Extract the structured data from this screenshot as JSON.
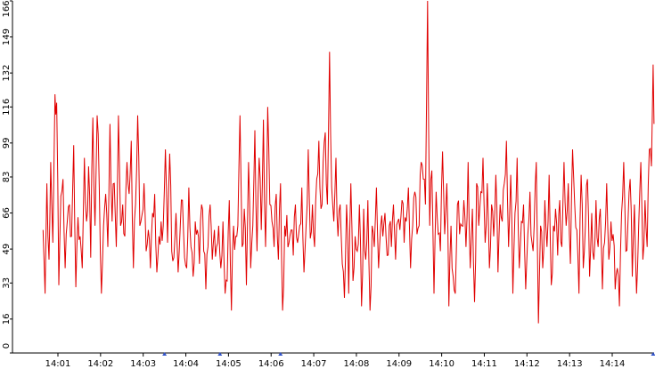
{
  "chart_data": {
    "type": "line",
    "title": "",
    "xlabel": "",
    "ylabel": "",
    "ylim": [
      0,
      166
    ],
    "y_ticks": [
      "0",
      "16",
      "33",
      "49",
      "66",
      "83",
      "99",
      "116",
      "132",
      "149",
      "166"
    ],
    "x_ticks": [
      "14:01",
      "14:02",
      "14:03",
      "14:04",
      "14:05",
      "14:06",
      "14:07",
      "14:08",
      "14:09",
      "14:10",
      "14:11",
      "14:12",
      "14:13",
      "14:14"
    ],
    "x_minutes": [
      1,
      2,
      3,
      4,
      5,
      6,
      7,
      8,
      9,
      10,
      11,
      12,
      13,
      14
    ],
    "x_start_minute": 0.65,
    "x_end_minute": 14.98,
    "markers_minutes": [
      3.5,
      4.8,
      6.22,
      14.96
    ],
    "grid": true,
    "line_color": "#e00000",
    "marker_color": "#3355cc",
    "series_anchors": [
      [
        0.65,
        58
      ],
      [
        0.7,
        28
      ],
      [
        0.74,
        80
      ],
      [
        0.79,
        44
      ],
      [
        0.83,
        90
      ],
      [
        0.88,
        52
      ],
      [
        0.93,
        122
      ],
      [
        0.97,
        118
      ],
      [
        1.02,
        32
      ],
      [
        1.07,
        74
      ],
      [
        1.12,
        82
      ],
      [
        1.17,
        40
      ],
      [
        1.22,
        62
      ],
      [
        1.27,
        70
      ],
      [
        1.32,
        55
      ],
      [
        1.37,
        98
      ],
      [
        1.42,
        31
      ],
      [
        1.47,
        64
      ],
      [
        1.52,
        55
      ],
      [
        1.57,
        40
      ],
      [
        1.62,
        92
      ],
      [
        1.67,
        62
      ],
      [
        1.72,
        88
      ],
      [
        1.77,
        45
      ],
      [
        1.82,
        111
      ],
      [
        1.87,
        60
      ],
      [
        1.92,
        112
      ],
      [
        1.97,
        78
      ],
      [
        2.02,
        28
      ],
      [
        2.07,
        60
      ],
      [
        2.12,
        75
      ],
      [
        2.17,
        50
      ],
      [
        2.22,
        108
      ],
      [
        2.27,
        62
      ],
      [
        2.32,
        80
      ],
      [
        2.37,
        50
      ],
      [
        2.42,
        112
      ],
      [
        2.47,
        60
      ],
      [
        2.52,
        70
      ],
      [
        2.57,
        55
      ],
      [
        2.62,
        90
      ],
      [
        2.67,
        75
      ],
      [
        2.72,
        100
      ],
      [
        2.77,
        40
      ],
      [
        2.82,
        70
      ],
      [
        2.87,
        112
      ],
      [
        2.92,
        60
      ],
      [
        2.97,
        65
      ],
      [
        3.02,
        80
      ],
      [
        3.07,
        48
      ],
      [
        3.12,
        58
      ],
      [
        3.17,
        40
      ],
      [
        3.22,
        66
      ],
      [
        3.27,
        75
      ],
      [
        3.32,
        38
      ],
      [
        3.37,
        55
      ],
      [
        3.42,
        62
      ],
      [
        3.47,
        60
      ],
      [
        3.52,
        96
      ],
      [
        3.57,
        52
      ],
      [
        3.62,
        94
      ],
      [
        3.67,
        48
      ],
      [
        3.72,
        45
      ],
      [
        3.77,
        66
      ],
      [
        3.82,
        38
      ],
      [
        3.87,
        60
      ],
      [
        3.92,
        72
      ],
      [
        3.97,
        45
      ],
      [
        4.02,
        40
      ],
      [
        4.07,
        78
      ],
      [
        4.12,
        50
      ],
      [
        4.17,
        36
      ],
      [
        4.22,
        62
      ],
      [
        4.27,
        58
      ],
      [
        4.32,
        42
      ],
      [
        4.37,
        70
      ],
      [
        4.42,
        48
      ],
      [
        4.47,
        30
      ],
      [
        4.52,
        50
      ],
      [
        4.57,
        70
      ],
      [
        4.62,
        44
      ],
      [
        4.67,
        58
      ],
      [
        4.72,
        50
      ],
      [
        4.77,
        60
      ],
      [
        4.82,
        40
      ],
      [
        4.87,
        62
      ],
      [
        4.92,
        28
      ],
      [
        4.97,
        34
      ],
      [
        5.02,
        72
      ],
      [
        5.07,
        20
      ],
      [
        5.12,
        60
      ],
      [
        5.17,
        55
      ],
      [
        5.22,
        60
      ],
      [
        5.27,
        112
      ],
      [
        5.32,
        50
      ],
      [
        5.37,
        68
      ],
      [
        5.42,
        32
      ],
      [
        5.47,
        90
      ],
      [
        5.52,
        40
      ],
      [
        5.57,
        60
      ],
      [
        5.62,
        105
      ],
      [
        5.67,
        48
      ],
      [
        5.72,
        92
      ],
      [
        5.77,
        58
      ],
      [
        5.82,
        110
      ],
      [
        5.87,
        50
      ],
      [
        5.92,
        116
      ],
      [
        5.97,
        70
      ],
      [
        6.02,
        62
      ],
      [
        6.07,
        50
      ],
      [
        6.12,
        75
      ],
      [
        6.17,
        44
      ],
      [
        6.22,
        80
      ],
      [
        6.27,
        20
      ],
      [
        6.32,
        60
      ],
      [
        6.37,
        65
      ],
      [
        6.42,
        52
      ],
      [
        6.47,
        58
      ],
      [
        6.52,
        46
      ],
      [
        6.57,
        70
      ],
      [
        6.62,
        52
      ],
      [
        6.67,
        60
      ],
      [
        6.72,
        78
      ],
      [
        6.77,
        38
      ],
      [
        6.82,
        60
      ],
      [
        6.87,
        96
      ],
      [
        6.92,
        54
      ],
      [
        6.97,
        70
      ],
      [
        7.02,
        50
      ],
      [
        7.07,
        82
      ],
      [
        7.12,
        100
      ],
      [
        7.17,
        68
      ],
      [
        7.22,
        90
      ],
      [
        7.27,
        104
      ],
      [
        7.32,
        70
      ],
      [
        7.37,
        142
      ],
      [
        7.42,
        78
      ],
      [
        7.47,
        62
      ],
      [
        7.52,
        92
      ],
      [
        7.57,
        55
      ],
      [
        7.62,
        70
      ],
      [
        7.67,
        42
      ],
      [
        7.72,
        26
      ],
      [
        7.77,
        70
      ],
      [
        7.82,
        28
      ],
      [
        7.87,
        80
      ],
      [
        7.92,
        34
      ],
      [
        7.97,
        55
      ],
      [
        8.02,
        48
      ],
      [
        8.07,
        70
      ],
      [
        8.12,
        22
      ],
      [
        8.17,
        68
      ],
      [
        8.22,
        44
      ],
      [
        8.27,
        72
      ],
      [
        8.32,
        20
      ],
      [
        8.37,
        60
      ],
      [
        8.42,
        50
      ],
      [
        8.47,
        78
      ],
      [
        8.52,
        40
      ],
      [
        8.57,
        60
      ],
      [
        8.62,
        55
      ],
      [
        8.67,
        66
      ],
      [
        8.72,
        46
      ],
      [
        8.77,
        60
      ],
      [
        8.82,
        50
      ],
      [
        8.87,
        70
      ],
      [
        8.92,
        44
      ],
      [
        8.97,
        62
      ],
      [
        9.02,
        58
      ],
      [
        9.07,
        72
      ],
      [
        9.12,
        52
      ],
      [
        9.17,
        62
      ],
      [
        9.22,
        78
      ],
      [
        9.27,
        40
      ],
      [
        9.32,
        60
      ],
      [
        9.37,
        76
      ],
      [
        9.42,
        56
      ],
      [
        9.47,
        60
      ],
      [
        9.52,
        90
      ],
      [
        9.57,
        82
      ],
      [
        9.62,
        70
      ],
      [
        9.67,
        166
      ],
      [
        9.72,
        60
      ],
      [
        9.77,
        86
      ],
      [
        9.82,
        28
      ],
      [
        9.87,
        76
      ],
      [
        9.92,
        56
      ],
      [
        9.97,
        48
      ],
      [
        10.02,
        95
      ],
      [
        10.07,
        56
      ],
      [
        10.12,
        80
      ],
      [
        10.17,
        22
      ],
      [
        10.22,
        60
      ],
      [
        10.27,
        36
      ],
      [
        10.32,
        28
      ],
      [
        10.37,
        70
      ],
      [
        10.42,
        56
      ],
      [
        10.47,
        60
      ],
      [
        10.52,
        72
      ],
      [
        10.57,
        50
      ],
      [
        10.62,
        90
      ],
      [
        10.67,
        40
      ],
      [
        10.72,
        68
      ],
      [
        10.77,
        24
      ],
      [
        10.82,
        80
      ],
      [
        10.87,
        60
      ],
      [
        10.92,
        76
      ],
      [
        10.97,
        92
      ],
      [
        11.02,
        52
      ],
      [
        11.07,
        80
      ],
      [
        11.12,
        40
      ],
      [
        11.17,
        70
      ],
      [
        11.22,
        55
      ],
      [
        11.27,
        84
      ],
      [
        11.32,
        38
      ],
      [
        11.37,
        70
      ],
      [
        11.42,
        62
      ],
      [
        11.47,
        80
      ],
      [
        11.52,
        100
      ],
      [
        11.57,
        50
      ],
      [
        11.62,
        84
      ],
      [
        11.67,
        28
      ],
      [
        11.72,
        66
      ],
      [
        11.77,
        92
      ],
      [
        11.82,
        40
      ],
      [
        11.87,
        62
      ],
      [
        11.92,
        70
      ],
      [
        11.97,
        30
      ],
      [
        12.02,
        56
      ],
      [
        12.07,
        76
      ],
      [
        12.12,
        52
      ],
      [
        12.17,
        60
      ],
      [
        12.22,
        90
      ],
      [
        12.27,
        14
      ],
      [
        12.32,
        60
      ],
      [
        12.37,
        40
      ],
      [
        12.42,
        72
      ],
      [
        12.47,
        50
      ],
      [
        12.52,
        84
      ],
      [
        12.57,
        32
      ],
      [
        12.62,
        60
      ],
      [
        12.67,
        68
      ],
      [
        12.72,
        46
      ],
      [
        12.77,
        72
      ],
      [
        12.82,
        50
      ],
      [
        12.87,
        90
      ],
      [
        12.92,
        60
      ],
      [
        12.97,
        80
      ],
      [
        13.02,
        42
      ],
      [
        13.07,
        96
      ],
      [
        13.12,
        70
      ],
      [
        13.17,
        58
      ],
      [
        13.22,
        28
      ],
      [
        13.27,
        84
      ],
      [
        13.32,
        40
      ],
      [
        13.37,
        60
      ],
      [
        13.42,
        82
      ],
      [
        13.47,
        36
      ],
      [
        13.52,
        66
      ],
      [
        13.57,
        44
      ],
      [
        13.62,
        72
      ],
      [
        13.67,
        50
      ],
      [
        13.72,
        68
      ],
      [
        13.77,
        30
      ],
      [
        13.82,
        52
      ],
      [
        13.87,
        80
      ],
      [
        13.92,
        44
      ],
      [
        13.97,
        62
      ],
      [
        14.02,
        56
      ],
      [
        14.07,
        30
      ],
      [
        14.12,
        40
      ],
      [
        14.17,
        22
      ],
      [
        14.22,
        66
      ],
      [
        14.27,
        90
      ],
      [
        14.32,
        48
      ],
      [
        14.37,
        62
      ],
      [
        14.42,
        82
      ],
      [
        14.47,
        36
      ],
      [
        14.52,
        70
      ],
      [
        14.57,
        28
      ],
      [
        14.62,
        60
      ],
      [
        14.67,
        90
      ],
      [
        14.72,
        44
      ],
      [
        14.77,
        72
      ],
      [
        14.82,
        50
      ],
      [
        14.87,
        96
      ],
      [
        14.92,
        88
      ],
      [
        14.96,
        136
      ],
      [
        14.98,
        108
      ]
    ]
  }
}
